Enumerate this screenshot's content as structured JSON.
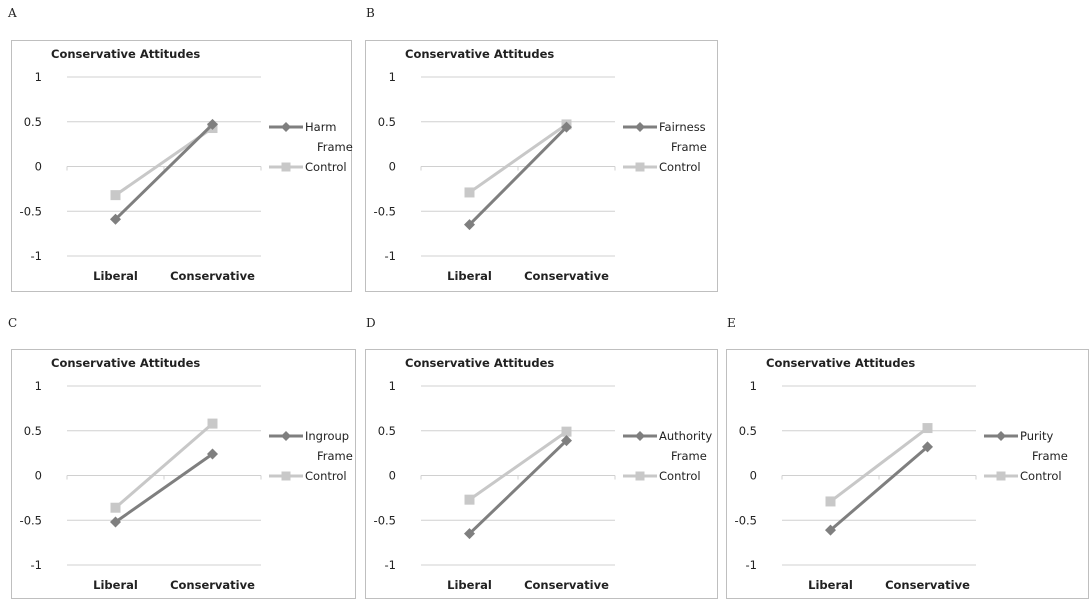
{
  "colors": {
    "frame_series": "#7f7f7f",
    "control_series": "#c8c8c8",
    "gridline": "#d0d0d0",
    "border": "#bfbfbf"
  },
  "chart_data": [
    {
      "panel": "A",
      "type": "line",
      "title": "Conservative Attitudes",
      "categories": [
        "Liberal",
        "Conservative"
      ],
      "ylim": [
        -1,
        1
      ],
      "yticks": [
        "1",
        "0.5",
        "0",
        "-0.5",
        "-1"
      ],
      "grid": true,
      "legend_position": "right",
      "series": [
        {
          "name": [
            "Harm",
            "Frame"
          ],
          "values": [
            -0.59,
            0.47
          ],
          "marker": "diamond",
          "color": "#7f7f7f"
        },
        {
          "name": [
            "Control"
          ],
          "values": [
            -0.32,
            0.43
          ],
          "marker": "square",
          "color": "#c8c8c8"
        }
      ]
    },
    {
      "panel": "B",
      "type": "line",
      "title": "Conservative Attitudes",
      "categories": [
        "Liberal",
        "Conservative"
      ],
      "ylim": [
        -1,
        1
      ],
      "yticks": [
        "1",
        "0.5",
        "0",
        "-0.5",
        "-1"
      ],
      "grid": true,
      "legend_position": "right",
      "series": [
        {
          "name": [
            "Fairness",
            "Frame"
          ],
          "values": [
            -0.65,
            0.44
          ],
          "marker": "diamond",
          "color": "#7f7f7f"
        },
        {
          "name": [
            "Control"
          ],
          "values": [
            -0.29,
            0.47
          ],
          "marker": "square",
          "color": "#c8c8c8"
        }
      ]
    },
    {
      "panel": "C",
      "type": "line",
      "title": "Conservative Attitudes",
      "categories": [
        "Liberal",
        "Conservative"
      ],
      "ylim": [
        -1,
        1
      ],
      "yticks": [
        "1",
        "0.5",
        "0",
        "-0.5",
        "-1"
      ],
      "grid": true,
      "legend_position": "right",
      "series": [
        {
          "name": [
            "Ingroup",
            "Frame"
          ],
          "values": [
            -0.52,
            0.24
          ],
          "marker": "diamond",
          "color": "#7f7f7f"
        },
        {
          "name": [
            "Control"
          ],
          "values": [
            -0.36,
            0.58
          ],
          "marker": "square",
          "color": "#c8c8c8"
        }
      ]
    },
    {
      "panel": "D",
      "type": "line",
      "title": "Conservative Attitudes",
      "categories": [
        "Liberal",
        "Conservative"
      ],
      "ylim": [
        -1,
        1
      ],
      "yticks": [
        "1",
        "0.5",
        "0",
        "-0.5",
        "-1"
      ],
      "grid": true,
      "legend_position": "right",
      "series": [
        {
          "name": [
            "Authority",
            "Frame"
          ],
          "values": [
            -0.65,
            0.39
          ],
          "marker": "diamond",
          "color": "#7f7f7f"
        },
        {
          "name": [
            "Control"
          ],
          "values": [
            -0.27,
            0.49
          ],
          "marker": "square",
          "color": "#c8c8c8"
        }
      ]
    },
    {
      "panel": "E",
      "type": "line",
      "title": "Conservative Attitudes",
      "categories": [
        "Liberal",
        "Conservative"
      ],
      "ylim": [
        -1,
        1
      ],
      "yticks": [
        "1",
        "0.5",
        "0",
        "-0.5",
        "-1"
      ],
      "grid": true,
      "legend_position": "right",
      "series": [
        {
          "name": [
            "Purity",
            "Frame"
          ],
          "values": [
            -0.61,
            0.32
          ],
          "marker": "diamond",
          "color": "#7f7f7f"
        },
        {
          "name": [
            "Control"
          ],
          "values": [
            -0.29,
            0.53
          ],
          "marker": "square",
          "color": "#c8c8c8"
        }
      ]
    }
  ]
}
